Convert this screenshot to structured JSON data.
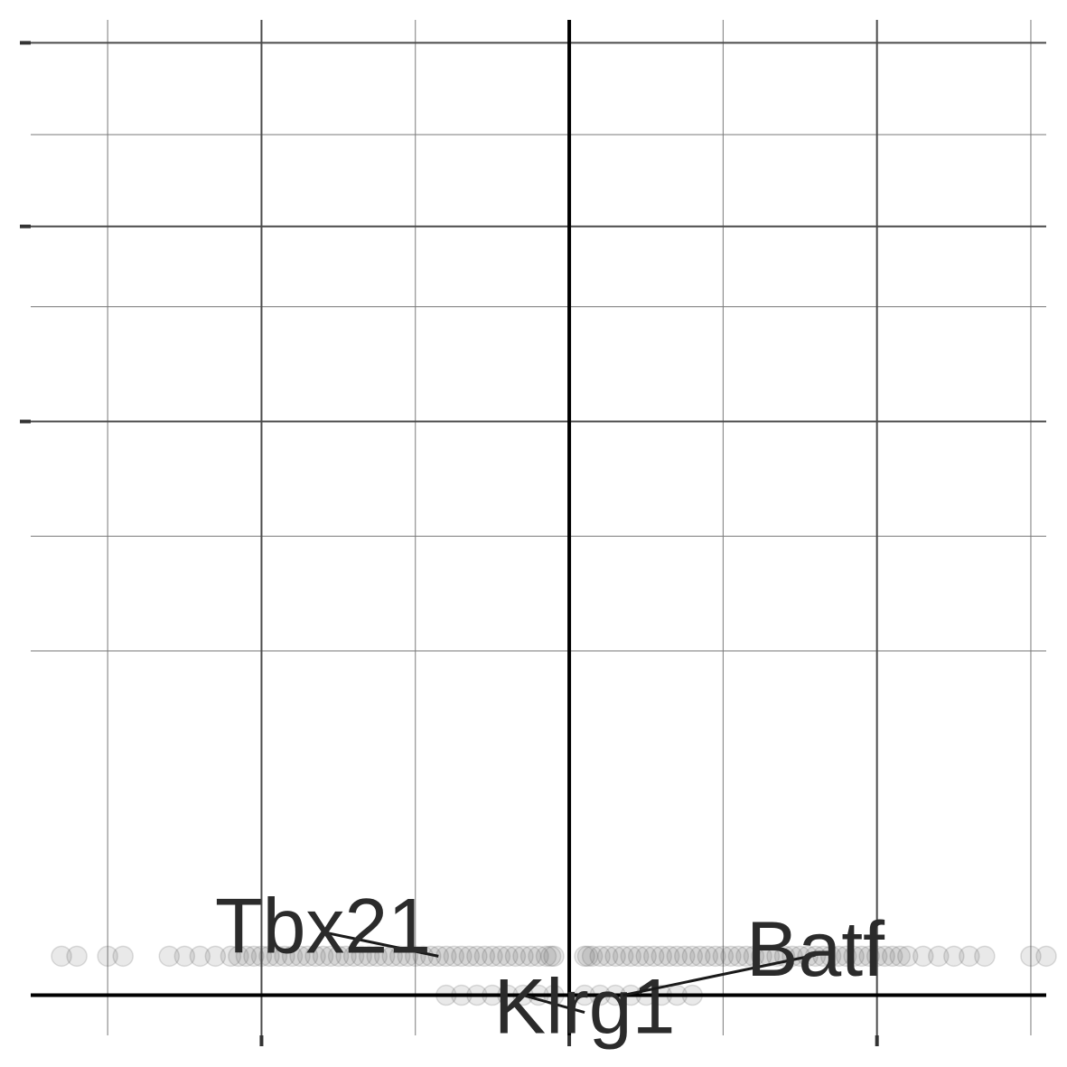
{
  "chart_data": {
    "type": "scatter",
    "title": "",
    "xlabel": "",
    "ylabel": "",
    "xlim": [
      -3.5,
      3.1
    ],
    "ylim": [
      -0.35,
      8.5
    ],
    "x_major_ticks": [
      -2,
      0,
      2
    ],
    "x_minor_gridlines": [
      -3,
      -1,
      1,
      3
    ],
    "y_major_ticks": [
      0,
      5,
      6.7,
      8.3
    ],
    "y_minor_gridlines": [
      3,
      4,
      6,
      7.5
    ],
    "tick_labels_shown": false,
    "zero_lines": true,
    "grid": true,
    "legend": "none",
    "point_color": "#4a4a4a",
    "point_opacity": 0.12,
    "series": [
      {
        "values_x": [
          -3.3,
          -3.2,
          -3.0,
          -2.9,
          -2.6,
          -2.5,
          -2.4,
          -2.3,
          -2.2,
          -2.15,
          -2.1,
          -2.05,
          -2.0,
          -1.95,
          -1.9,
          -1.85,
          -1.8,
          -1.75,
          -1.7,
          -1.65,
          -1.6,
          -1.55,
          -1.5,
          -1.45,
          -1.4,
          -1.35,
          -1.3,
          -1.25,
          -1.2,
          -1.15,
          -1.1,
          -1.05,
          -1.0,
          -0.95,
          -0.9,
          -0.85,
          -0.8,
          -0.75,
          -0.7,
          -0.65,
          -0.6,
          -0.55,
          -0.5,
          -0.45,
          -0.4,
          -0.35,
          -0.3,
          -0.25,
          -0.2,
          -0.15,
          -0.12,
          -0.1,
          0.1,
          0.12,
          0.15,
          0.2,
          0.25,
          0.3,
          0.35,
          0.4,
          0.45,
          0.5,
          0.55,
          0.6,
          0.65,
          0.7,
          0.75,
          0.8,
          0.85,
          0.9,
          0.95,
          1.0,
          1.05,
          1.1,
          1.15,
          1.2,
          1.25,
          1.3,
          1.35,
          1.4,
          1.45,
          1.5,
          1.55,
          1.6,
          1.65,
          1.7,
          1.75,
          1.8,
          1.85,
          1.9,
          1.95,
          2.0,
          2.05,
          2.1,
          2.15,
          2.2,
          2.3,
          2.4,
          2.5,
          2.6,
          2.7,
          3.0,
          3.1,
          -0.8,
          -0.7,
          -0.6,
          -0.5,
          -0.4,
          -0.3,
          -0.2,
          -0.1,
          0.1,
          0.2,
          0.3,
          0.4,
          0.5,
          0.6,
          0.7,
          0.8
        ],
        "values_y": [
          0.34,
          0.34,
          0.34,
          0.34,
          0.34,
          0.34,
          0.34,
          0.34,
          0.34,
          0.34,
          0.34,
          0.34,
          0.34,
          0.34,
          0.34,
          0.34,
          0.34,
          0.34,
          0.34,
          0.34,
          0.34,
          0.34,
          0.34,
          0.34,
          0.34,
          0.34,
          0.34,
          0.34,
          0.34,
          0.34,
          0.34,
          0.34,
          0.34,
          0.34,
          0.34,
          0.34,
          0.34,
          0.34,
          0.34,
          0.34,
          0.34,
          0.34,
          0.34,
          0.34,
          0.34,
          0.34,
          0.34,
          0.34,
          0.34,
          0.34,
          0.34,
          0.34,
          0.34,
          0.34,
          0.34,
          0.34,
          0.34,
          0.34,
          0.34,
          0.34,
          0.34,
          0.34,
          0.34,
          0.34,
          0.34,
          0.34,
          0.34,
          0.34,
          0.34,
          0.34,
          0.34,
          0.34,
          0.34,
          0.34,
          0.34,
          0.34,
          0.34,
          0.34,
          0.34,
          0.34,
          0.34,
          0.34,
          0.34,
          0.34,
          0.34,
          0.34,
          0.34,
          0.34,
          0.34,
          0.34,
          0.34,
          0.34,
          0.34,
          0.34,
          0.34,
          0.34,
          0.34,
          0.34,
          0.34,
          0.34,
          0.34,
          0.34,
          0.34,
          0.0,
          0.0,
          0.0,
          0.0,
          0.0,
          0.0,
          0.0,
          0.0,
          0.0,
          0.0,
          0.0,
          0.0,
          0.0,
          0.0,
          0.0,
          0.0
        ]
      }
    ],
    "annotations": [
      {
        "label": "Tbx21",
        "point": [
          -0.85,
          0.34
        ],
        "text_at": [
          -1.6,
          0.55
        ]
      },
      {
        "label": "Klrg1",
        "point": [
          -0.3,
          0.0
        ],
        "text_at": [
          0.1,
          -0.15
        ]
      },
      {
        "label": "Batf",
        "point": [
          0.35,
          0.0
        ],
        "text_at": [
          1.6,
          0.35
        ]
      }
    ]
  }
}
